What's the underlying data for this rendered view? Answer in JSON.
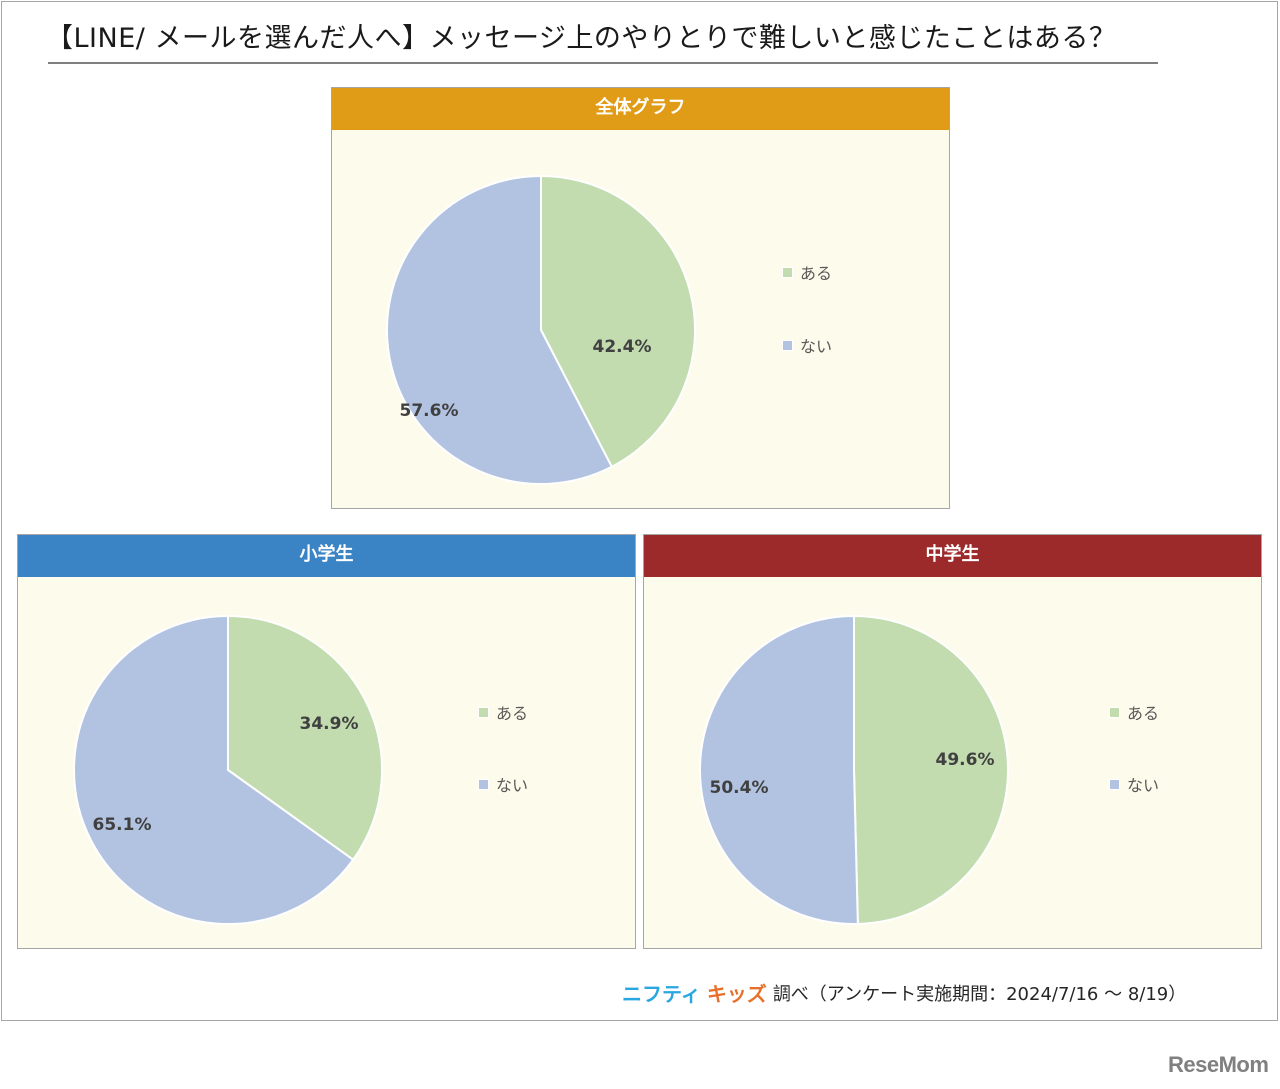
{
  "title": "【LINE/ メールを選んだ人へ】メッセージ上のやりとりで難しいと感じたことはある？",
  "panels": {
    "overall": {
      "header": "全体グラフ",
      "header_color": "#e09c17",
      "legend": [
        "ある",
        "ない"
      ],
      "labels": [
        "42.4%",
        "57.6%"
      ]
    },
    "elementary": {
      "header": "小学生",
      "header_color": "#3a83c5",
      "legend": [
        "ある",
        "ない"
      ],
      "labels": [
        "34.9%",
        "65.1%"
      ]
    },
    "junior_high": {
      "header": "中学生",
      "header_color": "#9c2a2b",
      "legend": [
        "ある",
        "ない"
      ],
      "labels": [
        "49.6%",
        "50.4%"
      ]
    }
  },
  "colors": {
    "aru": "#c2dcb0",
    "nai": "#b2c3e2",
    "panel_bg": "#fdfbec"
  },
  "footer": {
    "brand_part1": "ニフティ",
    "brand_part2": "キッズ",
    "text": "調べ（アンケート実施期間：2024/7/16 ～ 8/19）"
  },
  "watermark": "ReseMom",
  "chart_data": [
    {
      "type": "pie",
      "title": "全体グラフ",
      "categories": [
        "ある",
        "ない"
      ],
      "values": [
        42.4,
        57.6
      ],
      "colors": [
        "#c2dcb0",
        "#b2c3e2"
      ],
      "legend_position": "right"
    },
    {
      "type": "pie",
      "title": "小学生",
      "categories": [
        "ある",
        "ない"
      ],
      "values": [
        34.9,
        65.1
      ],
      "colors": [
        "#c2dcb0",
        "#b2c3e2"
      ],
      "legend_position": "right"
    },
    {
      "type": "pie",
      "title": "中学生",
      "categories": [
        "ある",
        "ない"
      ],
      "values": [
        49.6,
        50.4
      ],
      "colors": [
        "#c2dcb0",
        "#b2c3e2"
      ],
      "legend_position": "right"
    }
  ]
}
